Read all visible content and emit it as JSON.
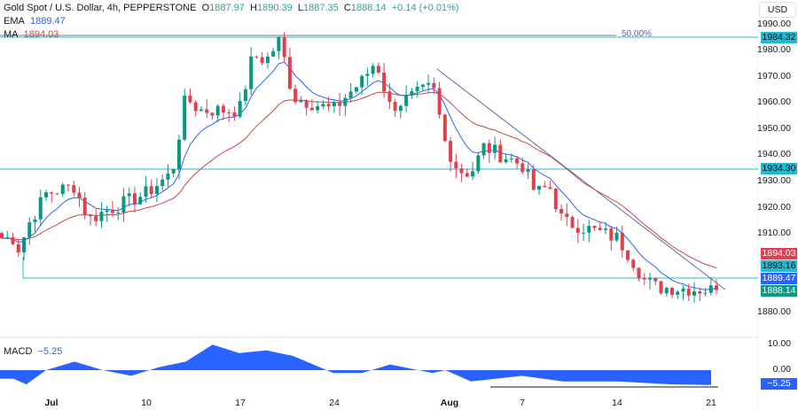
{
  "header": {
    "symbol": "Gold Spot / U.S. Dollar, 4h, PEPPERSTONE",
    "open_label": "O",
    "open": "1887.97",
    "high_label": "H",
    "high": "1890.39",
    "low_label": "L",
    "low": "1887.35",
    "close_label": "C",
    "close": "1888.14",
    "change": "+0.14 (+0.01%)"
  },
  "indicators": {
    "ema_label": "EMA",
    "ema_value": "1889.47",
    "ma_label": "MA",
    "ma_value": "1894.03",
    "macd_label": "MACD",
    "macd_value": "−5.25"
  },
  "price_axis": {
    "currency": "USD",
    "ticks": [
      "1990.00",
      "1980.00",
      "1970.00",
      "1960.00",
      "1950.00",
      "1940.00",
      "1930.00",
      "1920.00",
      "1910.00",
      "1880.00"
    ],
    "tags": [
      {
        "value": "1984.32",
        "color": "#22b8cf",
        "text_color": "#131722"
      },
      {
        "value": "1934.30",
        "color": "#22b8cf",
        "text_color": "#131722"
      },
      {
        "value": "1894.03",
        "color": "#e0404e",
        "text_color": "#ffffff"
      },
      {
        "value": "1893.16",
        "color": "#22b8cf",
        "text_color": "#131722"
      },
      {
        "value": "1889.47",
        "color": "#2962ff",
        "text_color": "#ffffff"
      },
      {
        "value": "1888.14",
        "color": "#089981",
        "text_color": "#ffffff"
      }
    ]
  },
  "macd_axis": {
    "ticks": [
      "10.00",
      "0.00"
    ],
    "tag": "−5.25",
    "tag_color": "#2962ff"
  },
  "time_axis": {
    "labels": [
      {
        "text": "Jul",
        "bold": true
      },
      {
        "text": "10",
        "bold": false
      },
      {
        "text": "17",
        "bold": false
      },
      {
        "text": "24",
        "bold": false
      },
      {
        "text": "Aug",
        "bold": true
      },
      {
        "text": "7",
        "bold": false
      },
      {
        "text": "14",
        "bold": false
      },
      {
        "text": "21",
        "bold": false
      }
    ]
  },
  "drawings": {
    "fib_label": "50.00%",
    "fib_level": 1984.6,
    "horizontal_levels": [
      1984.32,
      1934.3,
      1893.16
    ],
    "trendline": {
      "from": {
        "x_date": "Jul 31",
        "price": 1972.5
      },
      "to": {
        "x_date": "Aug 22",
        "price": 1887.0
      }
    }
  },
  "colors": {
    "up": "#089981",
    "down": "#e0404e",
    "ema": "#2962ff",
    "ma": "#c8454b",
    "macd_fill": "#2962ff",
    "level_line": "#22b8cf",
    "trendline": "#5d6ea8"
  },
  "chart_data": {
    "type": "candlestick",
    "title": "Gold Spot / U.S. Dollar, 4h, PEPPERSTONE",
    "xlabel": "",
    "ylabel": "USD",
    "ylim": [
      1875,
      1992
    ],
    "x_ticks": [
      "Jul",
      "10",
      "17",
      "24",
      "Aug",
      "7",
      "14",
      "21"
    ],
    "y_ticks": [
      1880,
      1890,
      1900,
      1910,
      1920,
      1930,
      1940,
      1950,
      1960,
      1970,
      1980,
      1990
    ],
    "last_ohlc": {
      "open": 1887.97,
      "high": 1890.39,
      "low": 1887.35,
      "close": 1888.14,
      "change": 0.14,
      "change_pct": 0.01
    },
    "approx_close_path": [
      {
        "date": "Jun 28",
        "close": 1908
      },
      {
        "date": "Jun 29",
        "close": 1903
      },
      {
        "date": "Jun 30",
        "close": 1912
      },
      {
        "date": "Jul 3",
        "close": 1925
      },
      {
        "date": "Jul 5",
        "close": 1928
      },
      {
        "date": "Jul 6",
        "close": 1915
      },
      {
        "date": "Jul 7",
        "close": 1918
      },
      {
        "date": "Jul 10",
        "close": 1925
      },
      {
        "date": "Jul 12",
        "close": 1933
      },
      {
        "date": "Jul 13",
        "close": 1962
      },
      {
        "date": "Jul 14",
        "close": 1957
      },
      {
        "date": "Jul 17",
        "close": 1957
      },
      {
        "date": "Jul 18",
        "close": 1978
      },
      {
        "date": "Jul 19",
        "close": 1976
      },
      {
        "date": "Jul 20",
        "close": 1984
      },
      {
        "date": "Jul 21",
        "close": 1962
      },
      {
        "date": "Jul 24",
        "close": 1957
      },
      {
        "date": "Jul 25",
        "close": 1963
      },
      {
        "date": "Jul 26",
        "close": 1968
      },
      {
        "date": "Jul 27",
        "close": 1976
      },
      {
        "date": "Jul 28",
        "close": 1958
      },
      {
        "date": "Jul 31",
        "close": 1966
      },
      {
        "date": "Aug 1",
        "close": 1944
      },
      {
        "date": "Aug 2",
        "close": 1934
      },
      {
        "date": "Aug 3",
        "close": 1933
      },
      {
        "date": "Aug 4",
        "close": 1943
      },
      {
        "date": "Aug 7",
        "close": 1936
      },
      {
        "date": "Aug 8",
        "close": 1925
      },
      {
        "date": "Aug 9",
        "close": 1928
      },
      {
        "date": "Aug 10",
        "close": 1914
      },
      {
        "date": "Aug 11",
        "close": 1913
      },
      {
        "date": "Aug 14",
        "close": 1908
      },
      {
        "date": "Aug 15",
        "close": 1901
      },
      {
        "date": "Aug 16",
        "close": 1892
      },
      {
        "date": "Aug 17",
        "close": 1889
      },
      {
        "date": "Aug 18",
        "close": 1889
      },
      {
        "date": "Aug 21",
        "close": 1888.14
      }
    ],
    "series": [
      {
        "name": "EMA",
        "last": 1889.47
      },
      {
        "name": "MA",
        "last": 1894.03
      }
    ],
    "annotations": [
      {
        "type": "fib_level",
        "label": "50.00%",
        "price": 1984.6
      },
      {
        "type": "hline",
        "price": 1984.32
      },
      {
        "type": "hline",
        "price": 1934.3
      },
      {
        "type": "hline",
        "price": 1893.16
      },
      {
        "type": "trendline",
        "from_price": 1972.5,
        "to_price": 1887.0
      }
    ],
    "subchart": {
      "name": "MACD",
      "type": "area",
      "last": -5.25,
      "ylim": [
        -8,
        13
      ],
      "y_ticks": [
        10.0,
        0.0
      ],
      "approx_values": [
        {
          "date": "Jun 28",
          "value": -3
        },
        {
          "date": "Jun 30",
          "value": -5
        },
        {
          "date": "Jul 3",
          "value": 0
        },
        {
          "date": "Jul 5",
          "value": 3
        },
        {
          "date": "Jul 7",
          "value": 0
        },
        {
          "date": "Jul 9",
          "value": -2
        },
        {
          "date": "Jul 11",
          "value": 1
        },
        {
          "date": "Jul 13",
          "value": 3
        },
        {
          "date": "Jul 15",
          "value": 9
        },
        {
          "date": "Jul 17",
          "value": 6
        },
        {
          "date": "Jul 19",
          "value": 7
        },
        {
          "date": "Jul 21",
          "value": 5
        },
        {
          "date": "Jul 24",
          "value": -1
        },
        {
          "date": "Jul 26",
          "value": -1
        },
        {
          "date": "Jul 28",
          "value": 2
        },
        {
          "date": "Jul 31",
          "value": -1
        },
        {
          "date": "Aug 1",
          "value": 0
        },
        {
          "date": "Aug 3",
          "value": -4
        },
        {
          "date": "Aug 7",
          "value": -2
        },
        {
          "date": "Aug 10",
          "value": -4
        },
        {
          "date": "Aug 14",
          "value": -4
        },
        {
          "date": "Aug 18",
          "value": -5
        },
        {
          "date": "Aug 21",
          "value": -5.25
        }
      ]
    }
  }
}
